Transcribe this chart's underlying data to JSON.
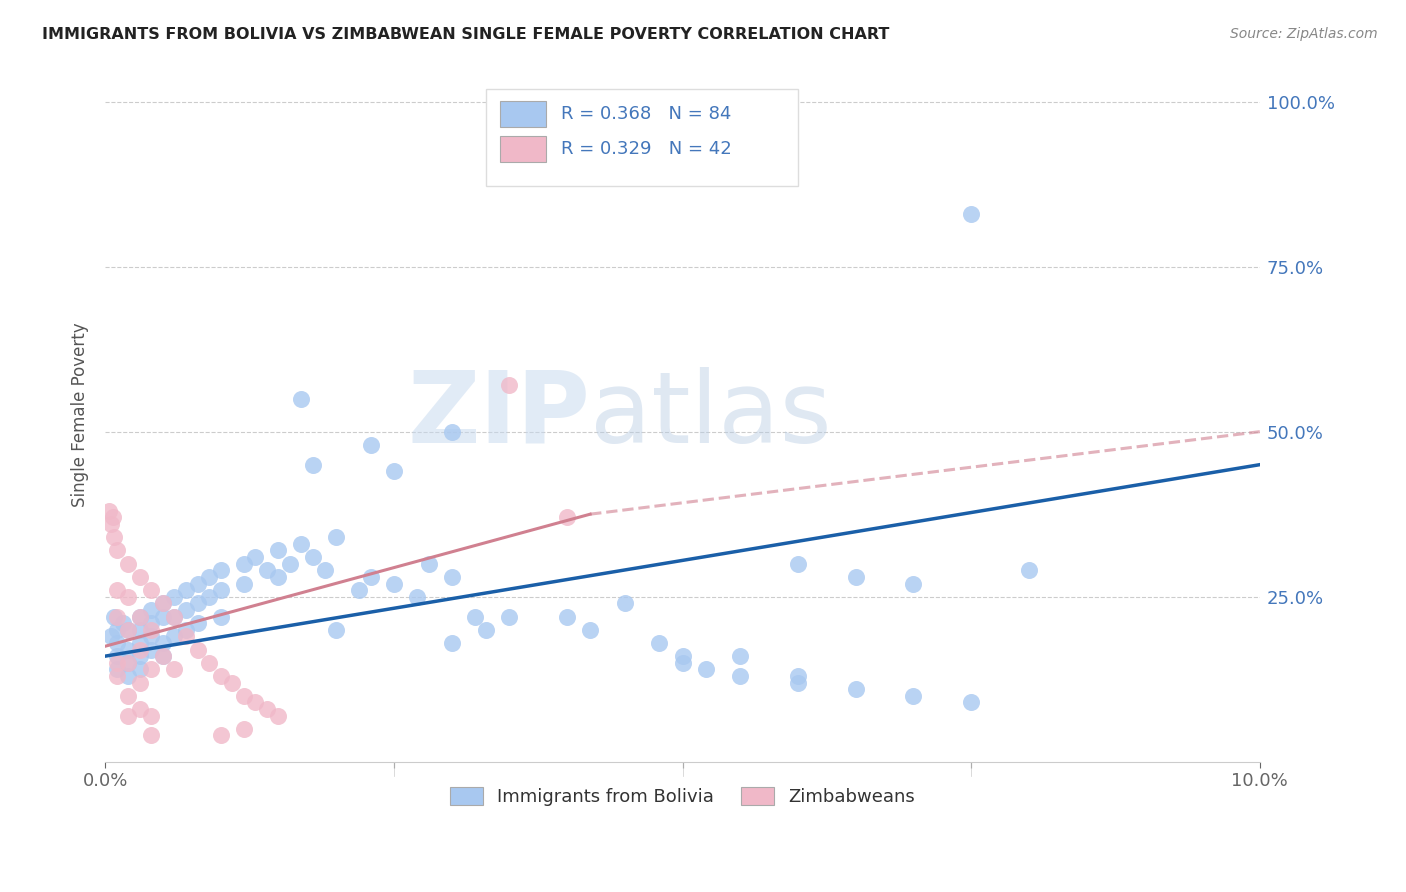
{
  "title": "IMMIGRANTS FROM BOLIVIA VS ZIMBABWEAN SINGLE FEMALE POVERTY CORRELATION CHART",
  "source": "Source: ZipAtlas.com",
  "ylabel": "Single Female Poverty",
  "legend_label1": "Immigrants from Bolivia",
  "legend_label2": "Zimbabweans",
  "R1": "0.368",
  "N1": "84",
  "R2": "0.329",
  "N2": "42",
  "color_blue": "#a8c8f0",
  "color_pink": "#f0b8c8",
  "color_blue_dark": "#1a5fa8",
  "color_pink_line": "#d08090",
  "text_blue": "#4477bb",
  "watermark_color": "#d0dff0",
  "grid_color": "#cccccc",
  "blue_points": [
    [
      0.0005,
      0.19
    ],
    [
      0.0008,
      0.22
    ],
    [
      0.001,
      0.2
    ],
    [
      0.001,
      0.18
    ],
    [
      0.001,
      0.16
    ],
    [
      0.001,
      0.14
    ],
    [
      0.0015,
      0.21
    ],
    [
      0.002,
      0.2
    ],
    [
      0.002,
      0.17
    ],
    [
      0.002,
      0.15
    ],
    [
      0.002,
      0.13
    ],
    [
      0.003,
      0.22
    ],
    [
      0.003,
      0.2
    ],
    [
      0.003,
      0.18
    ],
    [
      0.003,
      0.16
    ],
    [
      0.003,
      0.14
    ],
    [
      0.004,
      0.23
    ],
    [
      0.004,
      0.21
    ],
    [
      0.004,
      0.19
    ],
    [
      0.004,
      0.17
    ],
    [
      0.005,
      0.24
    ],
    [
      0.005,
      0.22
    ],
    [
      0.005,
      0.18
    ],
    [
      0.005,
      0.16
    ],
    [
      0.006,
      0.25
    ],
    [
      0.006,
      0.22
    ],
    [
      0.006,
      0.19
    ],
    [
      0.007,
      0.26
    ],
    [
      0.007,
      0.23
    ],
    [
      0.007,
      0.2
    ],
    [
      0.008,
      0.27
    ],
    [
      0.008,
      0.24
    ],
    [
      0.008,
      0.21
    ],
    [
      0.009,
      0.28
    ],
    [
      0.009,
      0.25
    ],
    [
      0.01,
      0.29
    ],
    [
      0.01,
      0.26
    ],
    [
      0.01,
      0.22
    ],
    [
      0.012,
      0.3
    ],
    [
      0.012,
      0.27
    ],
    [
      0.013,
      0.31
    ],
    [
      0.014,
      0.29
    ],
    [
      0.015,
      0.32
    ],
    [
      0.015,
      0.28
    ],
    [
      0.016,
      0.3
    ],
    [
      0.017,
      0.33
    ],
    [
      0.018,
      0.31
    ],
    [
      0.019,
      0.29
    ],
    [
      0.02,
      0.34
    ],
    [
      0.02,
      0.2
    ],
    [
      0.022,
      0.26
    ],
    [
      0.023,
      0.28
    ],
    [
      0.025,
      0.27
    ],
    [
      0.027,
      0.25
    ],
    [
      0.028,
      0.3
    ],
    [
      0.03,
      0.18
    ],
    [
      0.03,
      0.28
    ],
    [
      0.032,
      0.22
    ],
    [
      0.033,
      0.2
    ],
    [
      0.035,
      0.22
    ],
    [
      0.017,
      0.55
    ],
    [
      0.023,
      0.48
    ],
    [
      0.018,
      0.45
    ],
    [
      0.025,
      0.44
    ],
    [
      0.03,
      0.5
    ],
    [
      0.04,
      0.22
    ],
    [
      0.042,
      0.2
    ],
    [
      0.045,
      0.24
    ],
    [
      0.048,
      0.18
    ],
    [
      0.05,
      0.16
    ],
    [
      0.052,
      0.14
    ],
    [
      0.055,
      0.13
    ],
    [
      0.06,
      0.12
    ],
    [
      0.065,
      0.11
    ],
    [
      0.07,
      0.1
    ],
    [
      0.075,
      0.09
    ],
    [
      0.06,
      0.3
    ],
    [
      0.065,
      0.28
    ],
    [
      0.07,
      0.27
    ],
    [
      0.08,
      0.29
    ],
    [
      0.075,
      0.83
    ],
    [
      0.06,
      0.13
    ],
    [
      0.05,
      0.15
    ],
    [
      0.055,
      0.16
    ]
  ],
  "pink_points": [
    [
      0.0003,
      0.38
    ],
    [
      0.0005,
      0.36
    ],
    [
      0.0007,
      0.37
    ],
    [
      0.0008,
      0.34
    ],
    [
      0.001,
      0.32
    ],
    [
      0.001,
      0.26
    ],
    [
      0.001,
      0.22
    ],
    [
      0.001,
      0.15
    ],
    [
      0.001,
      0.13
    ],
    [
      0.002,
      0.3
    ],
    [
      0.002,
      0.25
    ],
    [
      0.002,
      0.2
    ],
    [
      0.002,
      0.15
    ],
    [
      0.002,
      0.1
    ],
    [
      0.002,
      0.07
    ],
    [
      0.003,
      0.28
    ],
    [
      0.003,
      0.22
    ],
    [
      0.003,
      0.17
    ],
    [
      0.003,
      0.12
    ],
    [
      0.003,
      0.08
    ],
    [
      0.004,
      0.26
    ],
    [
      0.004,
      0.2
    ],
    [
      0.004,
      0.14
    ],
    [
      0.004,
      0.07
    ],
    [
      0.004,
      0.04
    ],
    [
      0.005,
      0.24
    ],
    [
      0.005,
      0.16
    ],
    [
      0.006,
      0.22
    ],
    [
      0.006,
      0.14
    ],
    [
      0.007,
      0.19
    ],
    [
      0.008,
      0.17
    ],
    [
      0.009,
      0.15
    ],
    [
      0.01,
      0.13
    ],
    [
      0.011,
      0.12
    ],
    [
      0.012,
      0.1
    ],
    [
      0.013,
      0.09
    ],
    [
      0.014,
      0.08
    ],
    [
      0.015,
      0.07
    ],
    [
      0.01,
      0.04
    ],
    [
      0.012,
      0.05
    ],
    [
      0.035,
      0.57
    ],
    [
      0.04,
      0.37
    ]
  ],
  "xlim": [
    0,
    0.1
  ],
  "ylim": [
    0,
    1.05
  ],
  "ytick_vals": [
    0,
    0.25,
    0.5,
    0.75,
    1.0
  ],
  "ytick_labels": [
    "",
    "25.0%",
    "50.0%",
    "75.0%",
    "100.0%"
  ],
  "xtick_vals": [
    0,
    0.025,
    0.05,
    0.075,
    0.1
  ],
  "xtick_labels": [
    "0.0%",
    "",
    "",
    "",
    "10.0%"
  ]
}
